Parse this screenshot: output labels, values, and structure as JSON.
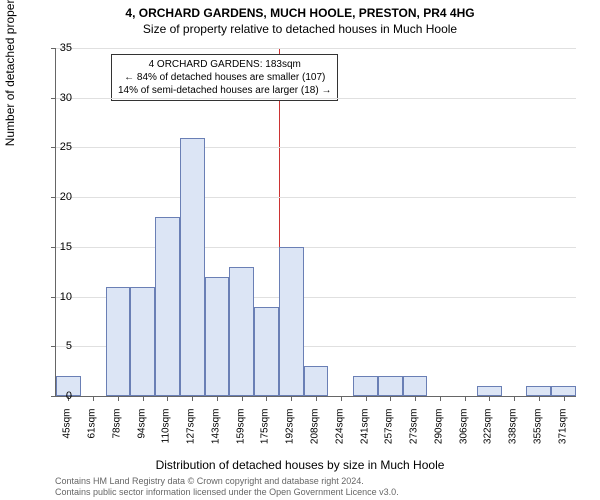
{
  "title_line1": "4, ORCHARD GARDENS, MUCH HOOLE, PRESTON, PR4 4HG",
  "title_line2": "Size of property relative to detached houses in Much Hoole",
  "y_axis_label": "Number of detached properties",
  "x_axis_label": "Distribution of detached houses by size in Much Hoole",
  "chart": {
    "type": "histogram",
    "ylim": [
      0,
      35
    ],
    "ytick_step": 5,
    "background_color": "#ffffff",
    "grid_color": "#e0e0e0",
    "bar_fill": "#dce5f5",
    "bar_border": "#6a7fb5",
    "axis_color": "#666666",
    "marker_color": "#cc3333",
    "categories": [
      "45sqm",
      "61sqm",
      "78sqm",
      "94sqm",
      "110sqm",
      "127sqm",
      "143sqm",
      "159sqm",
      "175sqm",
      "192sqm",
      "208sqm",
      "224sqm",
      "241sqm",
      "257sqm",
      "273sqm",
      "290sqm",
      "306sqm",
      "322sqm",
      "338sqm",
      "355sqm",
      "371sqm"
    ],
    "values": [
      2,
      0,
      11,
      11,
      18,
      26,
      12,
      13,
      9,
      15,
      3,
      0,
      2,
      2,
      2,
      0,
      0,
      1,
      0,
      1,
      1
    ],
    "marker_index": 9,
    "label_fontsize": 12,
    "tick_fontsize": 10
  },
  "annotation": {
    "line1": "4 ORCHARD GARDENS: 183sqm",
    "line2": "← 84% of detached houses are smaller (107)",
    "line3": "14% of semi-detached houses are larger (18) →"
  },
  "footer": {
    "line1": "Contains HM Land Registry data © Crown copyright and database right 2024.",
    "line2": "Contains public sector information licensed under the Open Government Licence v3.0."
  }
}
